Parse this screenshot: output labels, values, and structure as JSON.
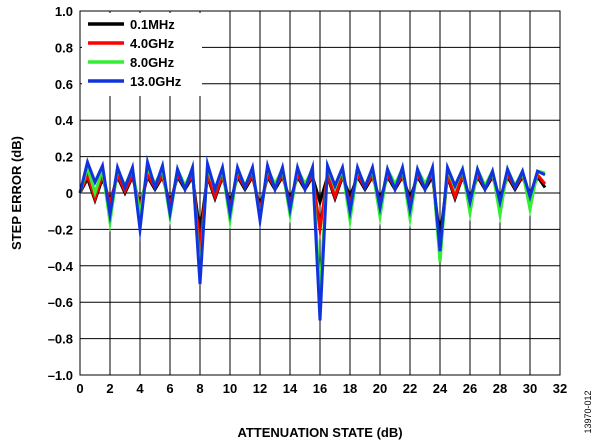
{
  "chart_data": {
    "type": "line",
    "xlabel": "ATTENUATION STATE (dB)",
    "ylabel": "STEP ERROR (dB)",
    "xlim": [
      0,
      32
    ],
    "ylim": [
      -1.0,
      1.0
    ],
    "x_ticks": [
      "0",
      "2",
      "4",
      "6",
      "8",
      "10",
      "12",
      "14",
      "16",
      "18",
      "20",
      "22",
      "24",
      "26",
      "28",
      "30",
      "32"
    ],
    "y_ticks": [
      "1.0",
      "0.8",
      "0.6",
      "0.4",
      "0.2",
      "0",
      "–0.2",
      "–0.4",
      "–0.6",
      "–0.8",
      "–1.0"
    ],
    "grid": true,
    "legend_position": "top-left",
    "x": [
      0,
      0.5,
      1,
      1.5,
      2,
      2.5,
      3,
      3.5,
      4,
      4.5,
      5,
      5.5,
      6,
      6.5,
      7,
      7.5,
      8,
      8.5,
      9,
      9.5,
      10,
      10.5,
      11,
      11.5,
      12,
      12.5,
      13,
      13.5,
      14,
      14.5,
      15,
      15.5,
      16,
      16.5,
      17,
      17.5,
      18,
      18.5,
      19,
      19.5,
      20,
      20.5,
      21,
      21.5,
      22,
      22.5,
      23,
      23.5,
      24,
      24.5,
      25,
      25.5,
      26,
      26.5,
      27,
      27.5,
      28,
      28.5,
      29,
      29.5,
      30,
      30.5,
      31
    ],
    "series": [
      {
        "name": "0.1MHz",
        "color": "#000000",
        "values": [
          0,
          0.08,
          -0.04,
          0.08,
          -0.05,
          0.09,
          0.0,
          0.09,
          -0.07,
          0.09,
          0.02,
          0.09,
          -0.06,
          0.09,
          0.02,
          0.09,
          -0.22,
          0.09,
          -0.03,
          0.09,
          -0.06,
          0.09,
          0.02,
          0.09,
          -0.08,
          0.09,
          0.02,
          0.09,
          -0.04,
          0.09,
          0.02,
          0.09,
          -0.05,
          0.09,
          -0.03,
          0.09,
          -0.02,
          0.09,
          0.02,
          0.09,
          -0.04,
          0.09,
          0.02,
          0.09,
          -0.03,
          0.09,
          0.02,
          0.09,
          -0.25,
          0.09,
          -0.03,
          0.09,
          -0.03,
          0.09,
          0.02,
          0.09,
          -0.03,
          0.09,
          0.02,
          0.09,
          -0.02,
          0.09,
          0.03
        ]
      },
      {
        "name": "4.0GHz",
        "color": "#ff0000",
        "values": [
          0,
          0.1,
          -0.03,
          0.1,
          -0.06,
          0.1,
          0.01,
          0.1,
          -0.08,
          0.1,
          0.03,
          0.1,
          -0.07,
          0.1,
          0.03,
          0.1,
          -0.3,
          0.1,
          -0.02,
          0.1,
          -0.08,
          0.1,
          0.03,
          0.1,
          -0.1,
          0.1,
          0.03,
          0.1,
          -0.06,
          0.1,
          0.03,
          0.1,
          -0.2,
          0.1,
          -0.02,
          0.1,
          -0.06,
          0.1,
          0.03,
          0.1,
          -0.06,
          0.1,
          0.03,
          0.1,
          -0.06,
          0.1,
          0.03,
          0.11,
          -0.33,
          0.1,
          -0.02,
          0.1,
          -0.05,
          0.1,
          0.03,
          0.1,
          -0.06,
          0.1,
          0.03,
          0.1,
          -0.04,
          0.1,
          0.05
        ]
      },
      {
        "name": "8.0GHz",
        "color": "#33ee33",
        "values": [
          0,
          0.14,
          0.0,
          0.13,
          -0.16,
          0.13,
          0.04,
          0.13,
          -0.12,
          0.14,
          0.05,
          0.13,
          -0.13,
          0.13,
          0.04,
          0.13,
          -0.45,
          0.14,
          0.02,
          0.13,
          -0.15,
          0.13,
          0.04,
          0.13,
          -0.14,
          0.13,
          0.05,
          0.13,
          -0.12,
          0.13,
          0.05,
          0.13,
          -0.55,
          0.14,
          0.03,
          0.13,
          -0.15,
          0.13,
          0.04,
          0.13,
          -0.13,
          0.13,
          0.05,
          0.13,
          -0.14,
          0.13,
          0.05,
          0.13,
          -0.38,
          0.13,
          0.03,
          0.13,
          -0.11,
          0.13,
          0.04,
          0.12,
          -0.12,
          0.13,
          0.04,
          0.12,
          -0.09,
          0.12,
          0.11
        ]
      },
      {
        "name": "13.0GHz",
        "color": "#1133dd",
        "values": [
          0,
          0.17,
          0.06,
          0.15,
          -0.12,
          0.14,
          0.03,
          0.14,
          -0.2,
          0.17,
          0.03,
          0.15,
          -0.11,
          0.13,
          0.02,
          0.14,
          -0.5,
          0.16,
          0.02,
          0.14,
          -0.11,
          0.14,
          0.03,
          0.14,
          -0.15,
          0.15,
          0.02,
          0.14,
          -0.09,
          0.14,
          0.02,
          0.14,
          -0.7,
          0.15,
          0.04,
          0.14,
          -0.1,
          0.14,
          0.03,
          0.14,
          -0.08,
          0.13,
          0.02,
          0.14,
          -0.09,
          0.13,
          0.02,
          0.14,
          -0.32,
          0.14,
          0.04,
          0.13,
          -0.05,
          0.13,
          0.02,
          0.12,
          -0.05,
          0.13,
          0.03,
          0.12,
          -0.02,
          0.12,
          0.1
        ]
      }
    ]
  },
  "figure_code": "13970-012"
}
